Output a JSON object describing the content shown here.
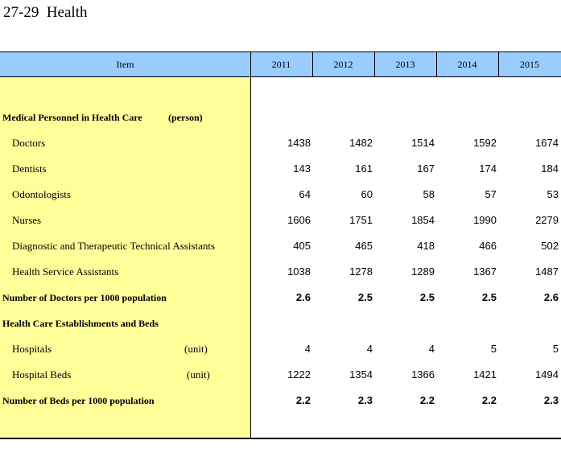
{
  "title": "27-29  Health",
  "header": {
    "item": "Item",
    "years": [
      "2011",
      "2012",
      "2013",
      "2014",
      "2015"
    ]
  },
  "rows": [
    {
      "label": "Medical Personnel in Health Care",
      "unit": "(person)",
      "bold": true,
      "indent": false,
      "values": []
    },
    {
      "label": "Doctors",
      "unit": "",
      "bold": false,
      "indent": true,
      "values": [
        "1438",
        "1482",
        "1514",
        "1592",
        "1674"
      ]
    },
    {
      "label": "Dentists",
      "unit": "",
      "bold": false,
      "indent": true,
      "values": [
        "143",
        "161",
        "167",
        "174",
        "184"
      ]
    },
    {
      "label": "Odontologists",
      "unit": "",
      "bold": false,
      "indent": true,
      "values": [
        "64",
        "60",
        "58",
        "57",
        "53"
      ]
    },
    {
      "label": "Nurses",
      "unit": "",
      "bold": false,
      "indent": true,
      "values": [
        "1606",
        "1751",
        "1854",
        "1990",
        "2279"
      ]
    },
    {
      "label": "Diagnostic and Therapeutic Technical Assistants",
      "unit": "",
      "bold": false,
      "indent": true,
      "values": [
        "405",
        "465",
        "418",
        "466",
        "502"
      ]
    },
    {
      "label": "Health Service Assistants",
      "unit": "",
      "bold": false,
      "indent": true,
      "values": [
        "1038",
        "1278",
        "1289",
        "1367",
        "1487"
      ]
    },
    {
      "label": "Number of Doctors per 1000 population",
      "unit": "",
      "bold": true,
      "indent": false,
      "values": [
        "2.6",
        "2.5",
        "2.5",
        "2.5",
        "2.6"
      ]
    },
    {
      "label": "Health Care Establishments and Beds",
      "unit": "",
      "bold": true,
      "indent": false,
      "values": []
    },
    {
      "label": "Hospitals",
      "unit": "(unit)",
      "bold": false,
      "indent": true,
      "values": [
        "4",
        "4",
        "4",
        "5",
        "5"
      ]
    },
    {
      "label": "Hospital Beds",
      "unit": "(unit)",
      "bold": false,
      "indent": true,
      "values": [
        "1222",
        "1354",
        "1366",
        "1421",
        "1494"
      ]
    },
    {
      "label": "Number of Beds per 1000 population",
      "unit": "",
      "bold": true,
      "indent": false,
      "values": [
        "2.2",
        "2.3",
        "2.2",
        "2.2",
        "2.3"
      ]
    }
  ]
}
